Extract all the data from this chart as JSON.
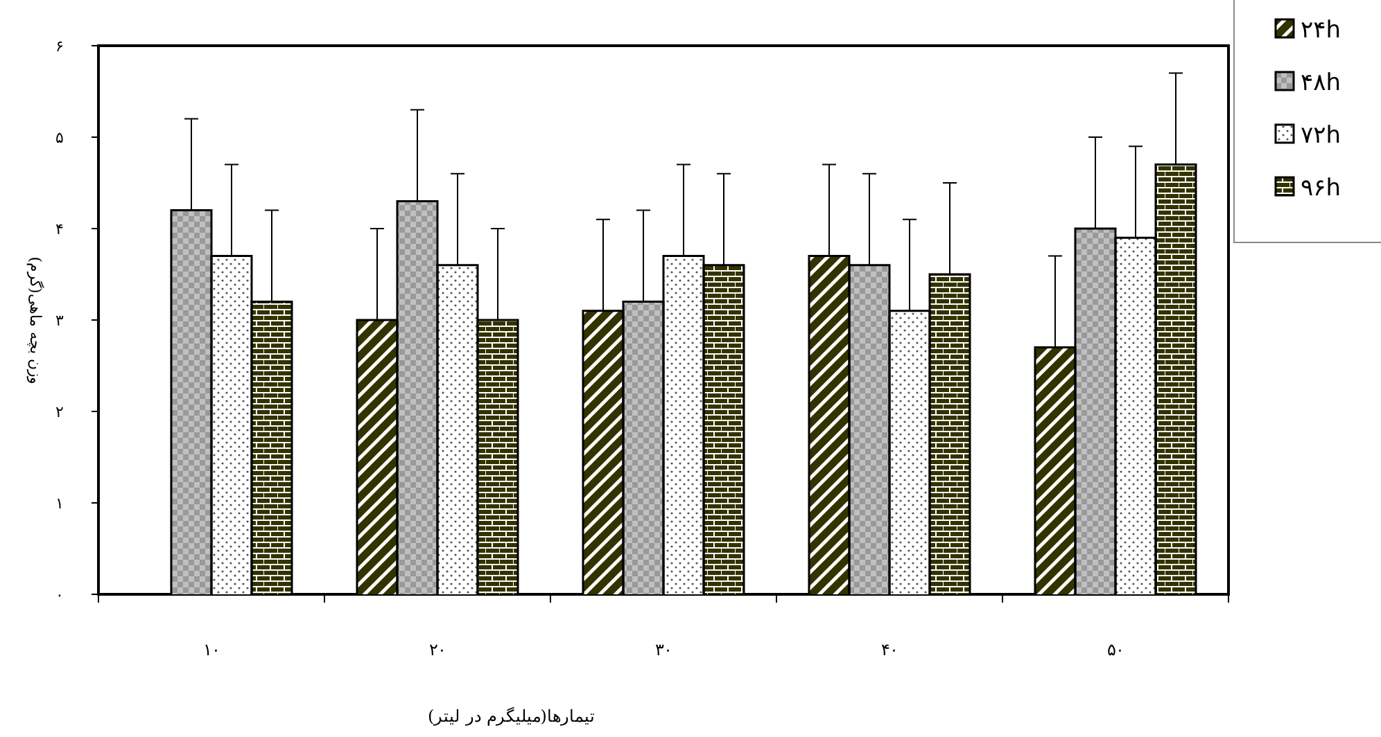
{
  "chart_data": {
    "type": "bar",
    "xlabel": "تیمارها(میلیگرم در لیتر)",
    "ylabel": "وزن بچه ماهی(گرم)",
    "categories": [
      "۱۰",
      "۲۰",
      "۳۰",
      "۴۰",
      "۵۰"
    ],
    "ylim": [
      0,
      6
    ],
    "yticks": [
      {
        "value": 0,
        "label": "۰"
      },
      {
        "value": 1,
        "label": "۱"
      },
      {
        "value": 2,
        "label": "۲"
      },
      {
        "value": 3,
        "label": "۳"
      },
      {
        "value": 4,
        "label": "۴"
      },
      {
        "value": 5,
        "label": "۵"
      },
      {
        "value": 6,
        "label": "۶"
      }
    ],
    "legend": "top right",
    "grid": false,
    "series": [
      {
        "name": "۲۴h",
        "color": "#333300",
        "values": [
          null,
          3.0,
          3.1,
          3.7,
          2.7
        ],
        "errors": [
          null,
          [
            3.0,
            4.0
          ],
          [
            3.1,
            4.1
          ],
          [
            3.7,
            4.7
          ],
          [
            2.7,
            3.7
          ]
        ]
      },
      {
        "name": "۴۸h",
        "color": "#999999",
        "values": [
          4.2,
          4.3,
          3.2,
          3.6,
          4.0
        ],
        "errors": [
          [
            4.2,
            5.2
          ],
          [
            4.3,
            5.3
          ],
          [
            3.2,
            4.2
          ],
          [
            3.6,
            4.6
          ],
          [
            4.0,
            5.0
          ]
        ]
      },
      {
        "name": "۷۲h",
        "color": "#ffffff",
        "values": [
          3.7,
          3.6,
          3.7,
          3.1,
          3.9
        ],
        "errors": [
          [
            3.7,
            4.7
          ],
          [
            3.6,
            4.6
          ],
          [
            3.7,
            4.7
          ],
          [
            3.1,
            4.1
          ],
          [
            3.9,
            4.9
          ]
        ]
      },
      {
        "name": "۹۶h",
        "color": "#333300",
        "values": [
          3.2,
          3.0,
          3.6,
          3.5,
          4.7
        ],
        "errors": [
          [
            3.2,
            4.2
          ],
          [
            3.0,
            4.0
          ],
          [
            3.6,
            4.6
          ],
          [
            3.5,
            4.5
          ],
          [
            4.7,
            5.7
          ]
        ]
      }
    ]
  }
}
